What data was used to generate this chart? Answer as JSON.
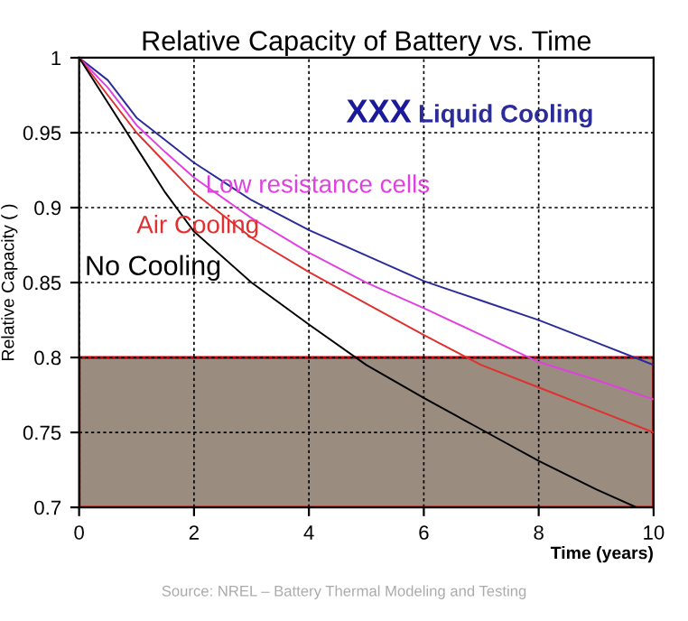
{
  "chart_data": {
    "type": "line",
    "title": "Relative Capacity of Battery vs. Time",
    "xlabel": "Time (years)",
    "ylabel": "Relative Capacity ( )",
    "series": [
      {
        "name": "Liquid Cooling",
        "color": "#2b2b9a",
        "x": [
          0,
          0.5,
          1,
          1.5,
          2,
          3,
          4,
          5,
          6,
          7,
          8,
          9,
          10
        ],
        "values": [
          1,
          0.985,
          0.96,
          0.945,
          0.93,
          0.905,
          0.885,
          0.868,
          0.851,
          0.838,
          0.825,
          0.81,
          0.795
        ]
      },
      {
        "name": "Low resistance cells",
        "color": "#e040e0",
        "x": [
          0,
          0.5,
          1,
          1.5,
          2,
          3,
          4,
          5,
          6,
          7,
          8,
          9,
          10
        ],
        "values": [
          1,
          0.98,
          0.955,
          0.937,
          0.92,
          0.893,
          0.87,
          0.85,
          0.833,
          0.815,
          0.797,
          0.785,
          0.772
        ]
      },
      {
        "name": "Air Cooling",
        "color": "#e03030",
        "x": [
          0,
          0.5,
          1,
          1.5,
          2,
          3,
          4,
          5,
          6,
          7,
          8,
          9,
          10
        ],
        "values": [
          1,
          0.975,
          0.95,
          0.93,
          0.91,
          0.88,
          0.857,
          0.836,
          0.815,
          0.795,
          0.78,
          0.765,
          0.75
        ]
      },
      {
        "name": "No Cooling",
        "color": "#000000",
        "x": [
          0,
          0.5,
          1,
          1.5,
          2,
          3,
          4,
          5,
          6,
          7,
          8,
          9,
          9.7
        ],
        "values": [
          1,
          0.97,
          0.94,
          0.91,
          0.884,
          0.85,
          0.822,
          0.795,
          0.773,
          0.752,
          0.731,
          0.712,
          0.7
        ]
      }
    ],
    "bands": [
      {
        "axis": "y",
        "from": 0.7,
        "to": 0.8,
        "color": "#9a8c7e"
      }
    ],
    "annotations": [
      "XXX",
      "Source: NREL – Battery Thermal Modeling and Testing"
    ],
    "xlim": [
      0,
      10
    ],
    "ylim": [
      0.7,
      1
    ],
    "xticks": [
      0,
      2,
      4,
      6,
      8,
      10
    ],
    "yticks": [
      0.7,
      0.75,
      0.8,
      0.85,
      0.9,
      0.95,
      1
    ],
    "grid": true,
    "legend": false,
    "line_style": "solid",
    "marker": "none"
  }
}
